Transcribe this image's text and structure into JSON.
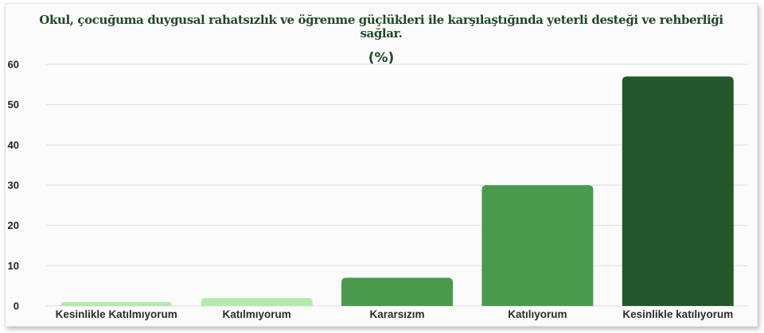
{
  "chart_data": {
    "type": "bar",
    "title": "Okul, çocuğuma duygusal rahatsızlık ve öğrenme güçlükleri ile karşılaştığında yeterli desteği ve rehberliği sağlar.",
    "subtitle": "(%)",
    "categories": [
      "Kesinlikle Katılmıyorum",
      "Katılmıyorum",
      "Kararsızım",
      "Katılıyorum",
      "Kesinlikle katılıyorum"
    ],
    "values": [
      1,
      2,
      7,
      30,
      57
    ],
    "colors": [
      "#b5e8ae",
      "#b5e8ae",
      "#4a9a4e",
      "#4a9a4e",
      "#24572b"
    ],
    "ylim": [
      0,
      60
    ],
    "yticks": [
      0,
      10,
      20,
      30,
      40,
      50,
      60
    ],
    "grid": true,
    "xlabel": "",
    "ylabel": ""
  }
}
